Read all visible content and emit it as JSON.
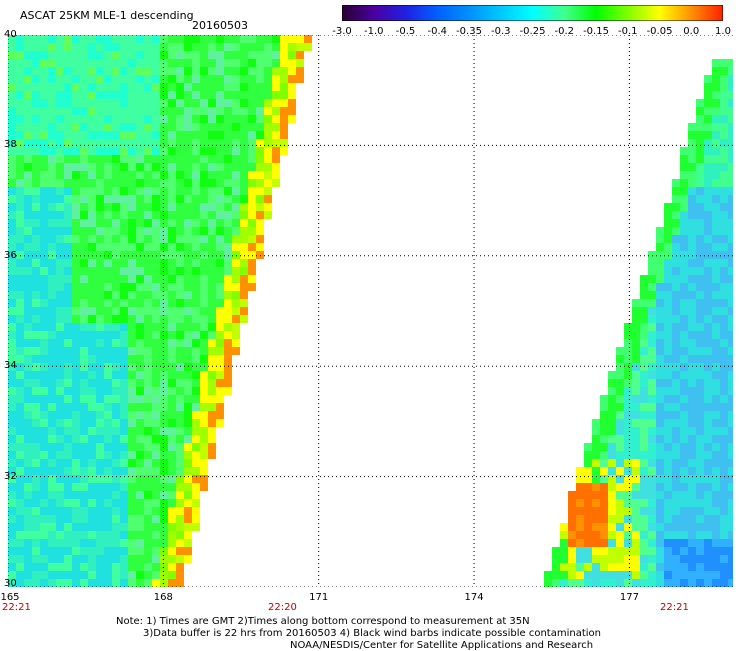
{
  "header": {
    "title": "ASCAT 25KM MLE-1 descending",
    "date": "20160503"
  },
  "colorbar": {
    "labels": [
      "-3.0",
      "-1.0",
      "-0.5",
      "-0.4",
      "-0.35",
      "-0.3",
      "-0.25",
      "-0.2",
      "-0.15",
      "-0.1",
      "-0.05",
      "0.0",
      "1.0"
    ],
    "colors": [
      "#2a0030",
      "#4a00a0",
      "#2020e0",
      "#0060ff",
      "#0090ff",
      "#00c8ff",
      "#00ffff",
      "#40ff90",
      "#00ff00",
      "#80ff00",
      "#ffff00",
      "#ff9000",
      "#ff2000"
    ]
  },
  "map": {
    "lon_range": [
      165,
      179
    ],
    "lat_range": [
      30,
      40
    ],
    "lon_ticks": [
      "165",
      "168",
      "171",
      "174",
      "177"
    ],
    "lat_ticks": [
      "40",
      "38",
      "36",
      "34",
      "32",
      "30"
    ],
    "grid": "dotted"
  },
  "time_labels": {
    "left": "22:21",
    "middle": "22:20",
    "right": "22:21"
  },
  "notes": {
    "line1": "Note: 1) Times are GMT 2)Times along bottom correspond to measurement at 35N",
    "line2": "3)Data buffer is 22 hrs from 20160503 4) Black wind barbs indicate possible contamination",
    "line3": "NOAA/NESDIS/Center for Satellite Applications and Research"
  }
}
